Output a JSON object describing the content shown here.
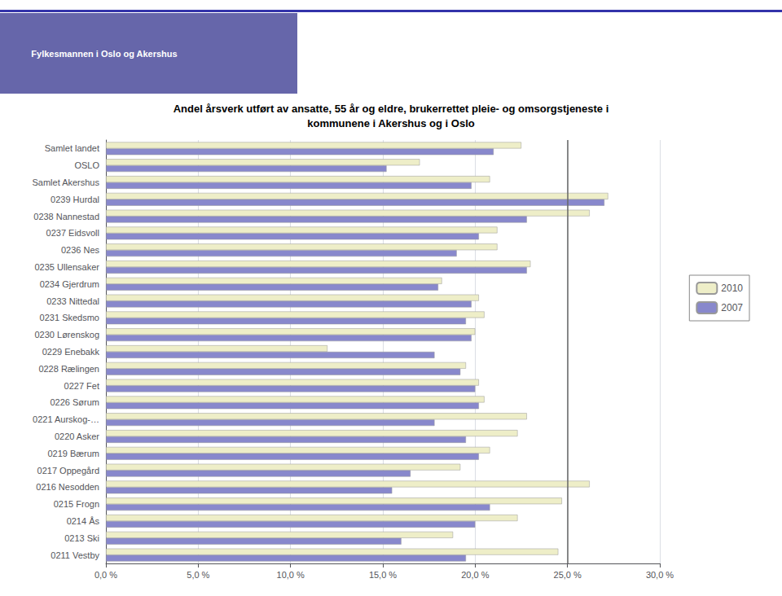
{
  "chart_data": {
    "type": "bar",
    "orientation": "horizontal",
    "title": "Andel årsverk utført av ansatte, 55 år og eldre, brukerrettet pleie- og omsorgstjeneste i",
    "subtitle": "kommunene i Akershus og i Oslo",
    "annotations": [
      "Fylkesmannen i Oslo og Akershus"
    ],
    "categories": [
      "Samlet landet",
      "OSLO",
      "Samlet Akershus",
      "0239 Hurdal",
      "0238 Nannestad",
      "0237 Eidsvoll",
      "0236 Nes",
      "0235 Ullensaker",
      "0234 Gjerdrum",
      "0233 Nittedal",
      "0231 Skedsmo",
      "0230 Lørenskog",
      "0229 Enebakk",
      "0228 Rælingen",
      "0227 Fet",
      "0226 Sørum",
      "0221 Aurskog-…",
      "0220 Asker",
      "0219 Bærum",
      "0217 Oppegård",
      "0216 Nesodden",
      "0215 Frogn",
      "0214 Ås",
      "0213 Ski",
      "0211 Vestby"
    ],
    "series": [
      {
        "name": "2010",
        "color": "#EEEEC8",
        "values": [
          22.5,
          17.0,
          20.8,
          27.2,
          26.2,
          21.2,
          21.2,
          23.0,
          18.2,
          20.2,
          20.5,
          20.0,
          12.0,
          19.5,
          20.2,
          20.5,
          22.8,
          22.3,
          20.8,
          19.2,
          26.2,
          24.7,
          22.3,
          18.8,
          24.5
        ]
      },
      {
        "name": "2007",
        "color": "#8888CC",
        "values": [
          21.0,
          15.2,
          19.8,
          27.0,
          22.8,
          20.2,
          19.0,
          22.8,
          18.0,
          19.8,
          19.5,
          19.8,
          17.8,
          19.2,
          20.0,
          20.2,
          17.8,
          19.5,
          20.2,
          16.5,
          15.5,
          20.8,
          20.0,
          16.0,
          19.5
        ]
      }
    ],
    "xlim": [
      0,
      30
    ],
    "xticks": [
      {
        "value": 0,
        "label": "0,0 %"
      },
      {
        "value": 5,
        "label": "5,0 %"
      },
      {
        "value": 10,
        "label": "10,0 %"
      },
      {
        "value": 15,
        "label": "15,0 %"
      },
      {
        "value": 20,
        "label": "20,0 %"
      },
      {
        "value": 25,
        "label": "25,0 %"
      },
      {
        "value": 30,
        "label": "30,0 %"
      }
    ],
    "vline": 25.0,
    "grid": true,
    "legend": "right"
  }
}
